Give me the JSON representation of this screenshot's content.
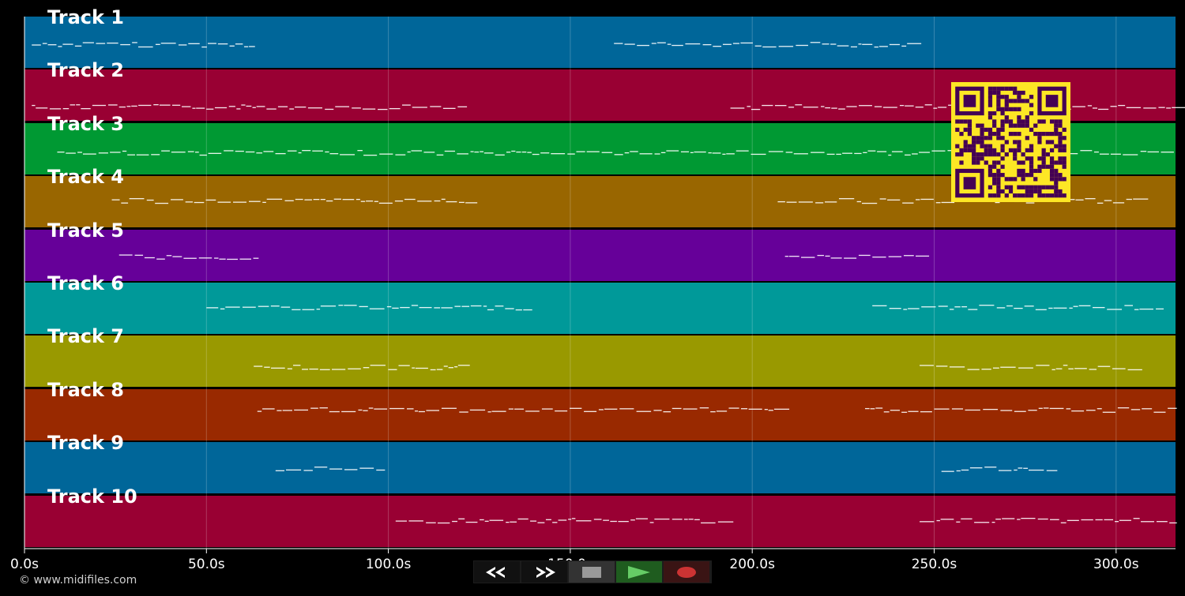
{
  "tracks": [
    {
      "label": "Track 1",
      "color": "#006699"
    },
    {
      "label": "Track 2",
      "color": "#990033"
    },
    {
      "label": "Track 3",
      "color": "#009933"
    },
    {
      "label": "Track 4",
      "color": "#996600"
    },
    {
      "label": "Track 5",
      "color": "#660099"
    },
    {
      "label": "Track 6",
      "color": "#009999"
    },
    {
      "label": "Track 7",
      "color": "#999900"
    },
    {
      "label": "Track 8",
      "color": "#992900"
    },
    {
      "label": "Track 9",
      "color": "#006699"
    },
    {
      "label": "Track 10",
      "color": "#990033"
    }
  ],
  "time_axis": {
    "ticks": [
      "0.0s",
      "50.0s",
      "100.0s",
      "150.0s",
      "200.0s",
      "250.0s",
      "300.0s"
    ],
    "max_seconds": 316
  },
  "copyright": "© www.midifiles.com",
  "controls": [
    {
      "name": "rewind",
      "icon": "rewind-icon",
      "bg": "#111111"
    },
    {
      "name": "fast-forward",
      "icon": "fast-forward-icon",
      "bg": "#111111"
    },
    {
      "name": "stop",
      "icon": "stop-icon",
      "bg": "#333333"
    },
    {
      "name": "play",
      "icon": "play-icon",
      "bg": "#1f5c1f"
    },
    {
      "name": "record",
      "icon": "record-icon",
      "bg": "#3a1414"
    }
  ],
  "qr_code": {
    "description_icon": "qr-code-icon",
    "fg": "#440154",
    "bg": "#fde725"
  }
}
